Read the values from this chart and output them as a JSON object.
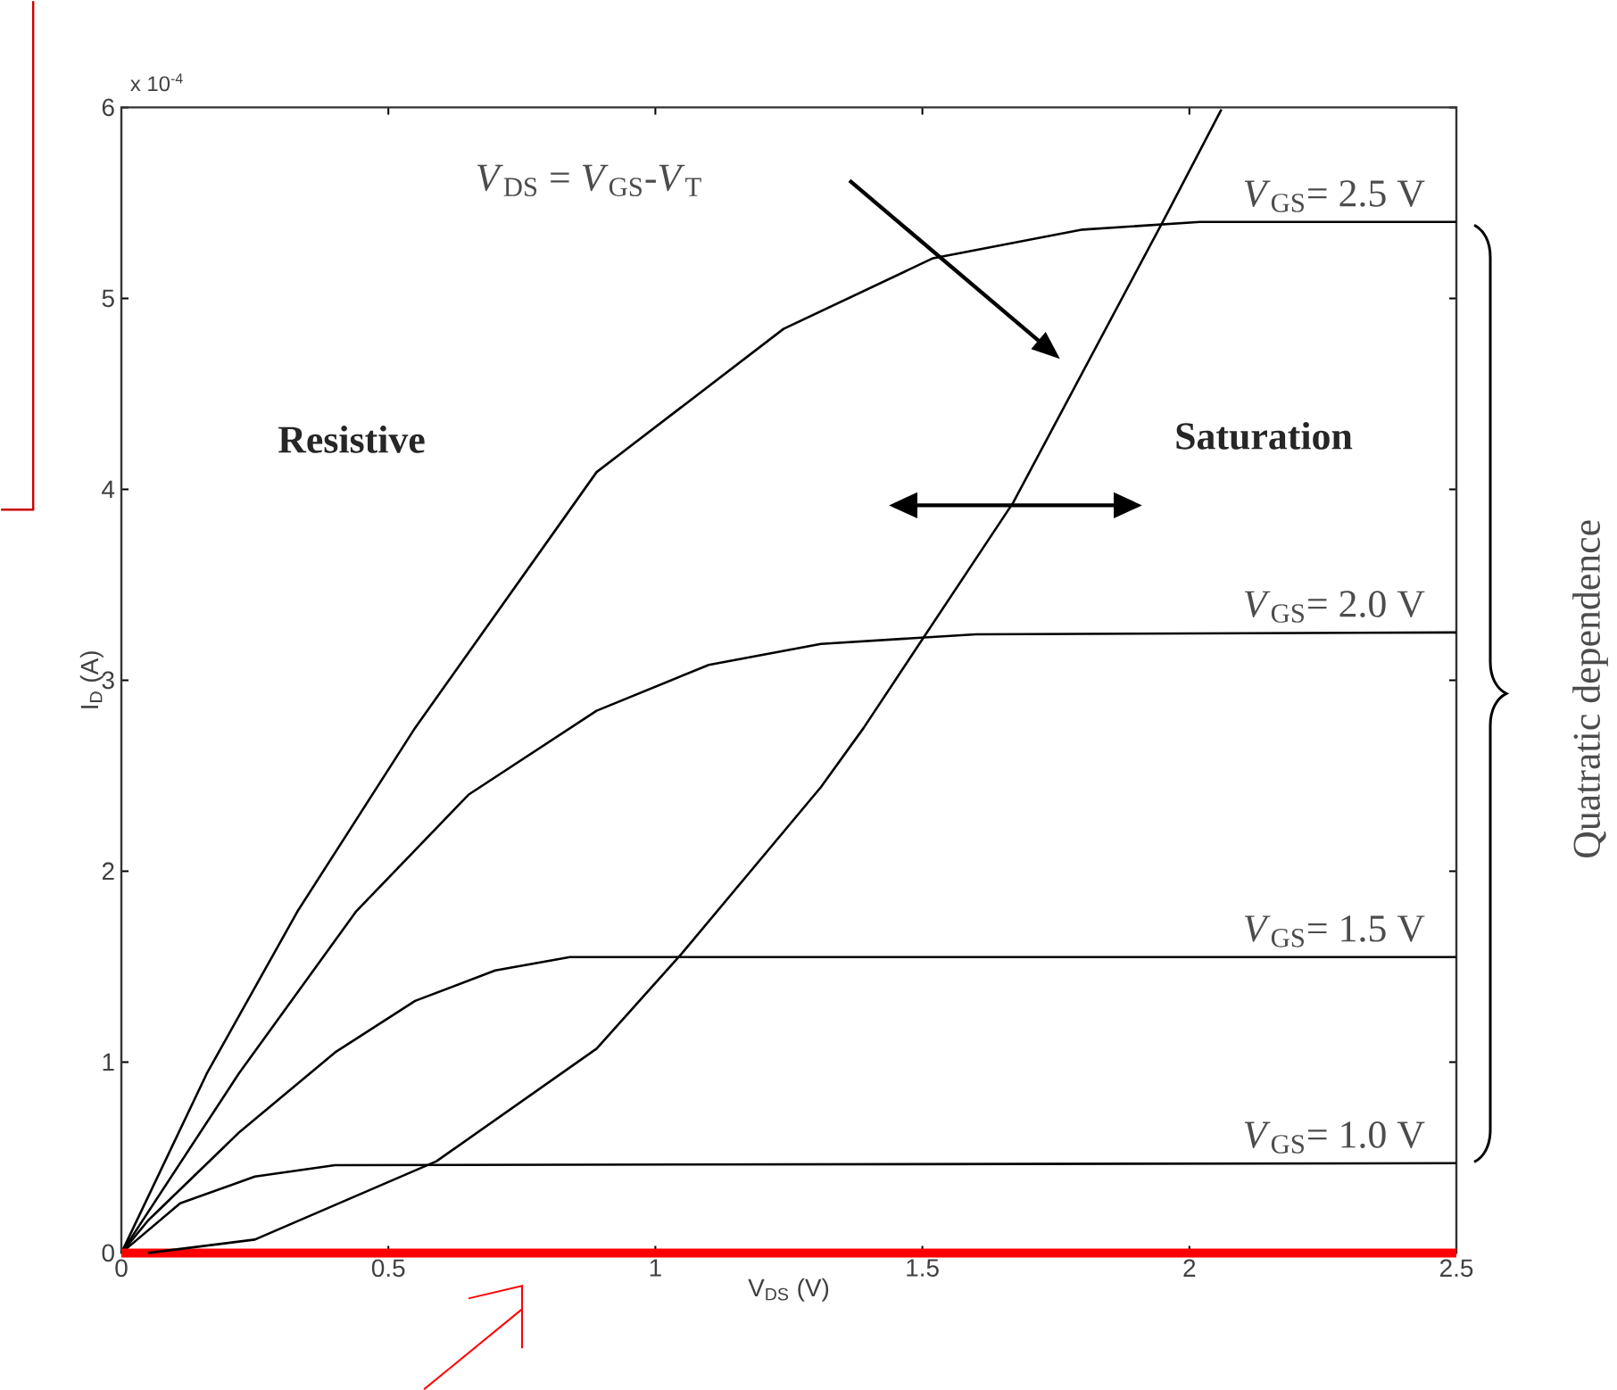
{
  "chart_data": {
    "type": "line",
    "xlabel": "V$_{DS}$ (V)",
    "ylabel": "I$_{D}$ (A)",
    "xlim": [
      0,
      2.5
    ],
    "ylim": [
      0,
      6
    ],
    "xticks": [
      0,
      0.5,
      1,
      1.5,
      2,
      2.5
    ],
    "yticks": [
      0,
      1,
      2,
      3,
      4,
      5,
      6
    ],
    "marker": "none",
    "line_style": "solid",
    "series": [
      {
        "name": "*V*$_{GS}$= 1.0 V",
        "color": "#000000",
        "x": [
          0,
          0.11,
          0.25,
          0.4,
          2.5
        ],
        "values": [
          0,
          0.26,
          0.4,
          0.46,
          0.47
        ]
      },
      {
        "name": "*V*$_{GS}$= 1.5 V",
        "color": "#000000",
        "x": [
          0,
          0.05,
          0.22,
          0.4,
          0.55,
          0.7,
          0.84,
          2.5
        ],
        "values": [
          0,
          0.17,
          0.63,
          1.05,
          1.32,
          1.48,
          1.55,
          1.55
        ]
      },
      {
        "name": "*V*$_{GS}$= 2.0 V",
        "color": "#000000",
        "x": [
          0,
          0.22,
          0.44,
          0.65,
          0.89,
          1.1,
          1.31,
          1.6,
          2.5
        ],
        "values": [
          0,
          0.94,
          1.79,
          2.4,
          2.84,
          3.08,
          3.19,
          3.24,
          3.25
        ]
      },
      {
        "name": "*V*$_{GS}$= 2.5 V",
        "color": "#000000",
        "x": [
          0,
          0.16,
          0.33,
          0.55,
          0.89,
          1.24,
          1.52,
          1.8,
          2.02,
          2.5
        ],
        "values": [
          0,
          0.94,
          1.79,
          2.75,
          4.09,
          4.84,
          5.21,
          5.36,
          5.4,
          5.4
        ]
      },
      {
        "color": "#ff0000",
        "x": [
          0,
          2.5
        ],
        "values": [
          0,
          0
        ]
      },
      {
        "color": "#000000",
        "x": [
          0.05,
          0.25,
          0.59,
          0.89,
          1.05,
          1.31,
          1.39,
          1.67,
          1.95,
          2.06
        ],
        "values": [
          0,
          0.07,
          0.48,
          1.07,
          1.57,
          2.44,
          2.75,
          3.93,
          5.4,
          5.99
        ]
      }
    ],
    "annotations": [
      "x 10$^{-4}$",
      "*V*$_{DS}$ = *V*$_{GS}$-*V*$_{T}$",
      "Resistive",
      "Saturation",
      "Quatratic dependence"
    ]
  }
}
